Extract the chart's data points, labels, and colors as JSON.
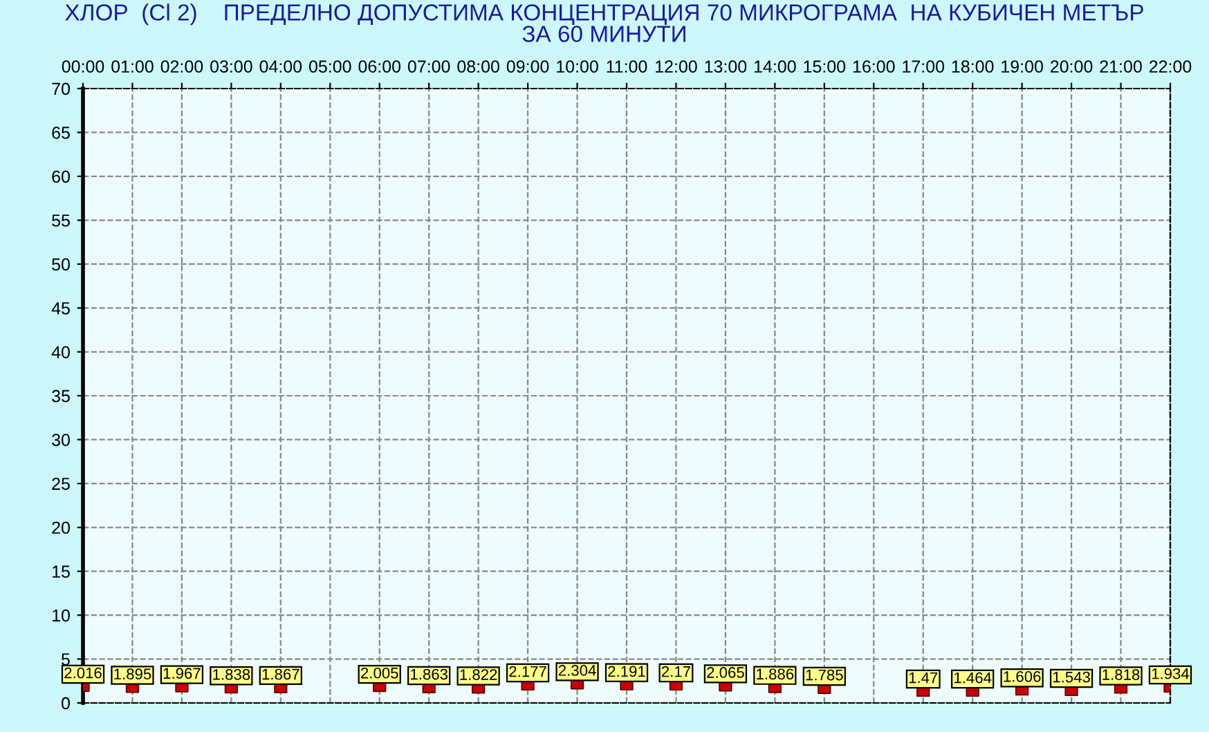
{
  "chart_data": {
    "type": "scatter",
    "title": "ХЛОР  (Cl 2)    ПРЕДЕЛНО ДОПУСТИМА КОНЦЕНТРАЦИЯ 70 МИКРОГРАМА  НА КУБИЧЕН МЕТЪР\nЗА 60 МИНУТИ",
    "x": [
      0,
      1,
      2,
      3,
      4,
      5,
      6,
      7,
      8,
      9,
      10,
      11,
      12,
      13,
      14,
      15,
      16,
      17,
      18,
      19,
      20,
      21,
      22
    ],
    "series": [
      {
        "color": "#cc0000",
        "values": [
          2.016,
          1.895,
          1.967,
          1.838,
          1.867,
          null,
          2.005,
          1.863,
          1.822,
          2.177,
          2.304,
          2.191,
          2.17,
          2.065,
          1.886,
          1.785,
          null,
          1.47,
          1.464,
          1.606,
          1.543,
          1.818,
          1.934
        ]
      }
    ],
    "xlim": [
      0,
      22
    ],
    "xticks": [
      {
        "value": 0,
        "label": "00:00"
      },
      {
        "value": 1,
        "label": "01:00"
      },
      {
        "value": 2,
        "label": "02:00"
      },
      {
        "value": 3,
        "label": "03:00"
      },
      {
        "value": 4,
        "label": "04:00"
      },
      {
        "value": 5,
        "label": "05:00"
      },
      {
        "value": 6,
        "label": "06:00"
      },
      {
        "value": 7,
        "label": "07:00"
      },
      {
        "value": 8,
        "label": "08:00"
      },
      {
        "value": 9,
        "label": "09:00"
      },
      {
        "value": 10,
        "label": "10:00"
      },
      {
        "value": 11,
        "label": "11:00"
      },
      {
        "value": 12,
        "label": "12:00"
      },
      {
        "value": 13,
        "label": "13:00"
      },
      {
        "value": 14,
        "label": "14:00"
      },
      {
        "value": 15,
        "label": "15:00"
      },
      {
        "value": 16,
        "label": "16:00"
      },
      {
        "value": 17,
        "label": "17:00"
      },
      {
        "value": 18,
        "label": "18:00"
      },
      {
        "value": 19,
        "label": "19:00"
      },
      {
        "value": 20,
        "label": "20:00"
      },
      {
        "value": 21,
        "label": "21:00"
      },
      {
        "value": 22,
        "label": "22:00"
      }
    ],
    "ylim": [
      0,
      70
    ],
    "yticks": [
      0,
      5,
      10,
      15,
      20,
      25,
      30,
      35,
      40,
      45,
      50,
      55,
      60,
      65,
      70
    ],
    "grid": true,
    "marker": "square",
    "data_labels": true
  }
}
